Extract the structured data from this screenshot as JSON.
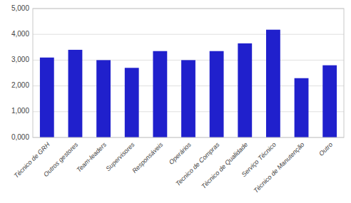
{
  "chart_data": {
    "type": "bar",
    "categories": [
      "Técnico de GRH",
      "Outros gestores",
      "Team-leaders",
      "Supervisores",
      "Responsáveis",
      "Operários",
      "Tecnico de Compras",
      "Técnico de Qualidade",
      "Serviço Técnico",
      "Técnico de Manutenção",
      "Outro"
    ],
    "values": [
      3.1,
      3.4,
      3.0,
      2.7,
      3.35,
      3.0,
      3.35,
      3.65,
      4.18,
      2.3,
      2.8
    ],
    "color": "#2020CC",
    "ylim": [
      0,
      5.0
    ],
    "yticks": [
      {
        "value": 0.0,
        "label": "0,000"
      },
      {
        "value": 1.0,
        "label": "1,000"
      },
      {
        "value": 2.0,
        "label": "2,000"
      },
      {
        "value": 3.0,
        "label": "3,000"
      },
      {
        "value": 4.0,
        "label": "4,000"
      },
      {
        "value": 5.0,
        "label": "5,000"
      }
    ],
    "grid": true
  }
}
